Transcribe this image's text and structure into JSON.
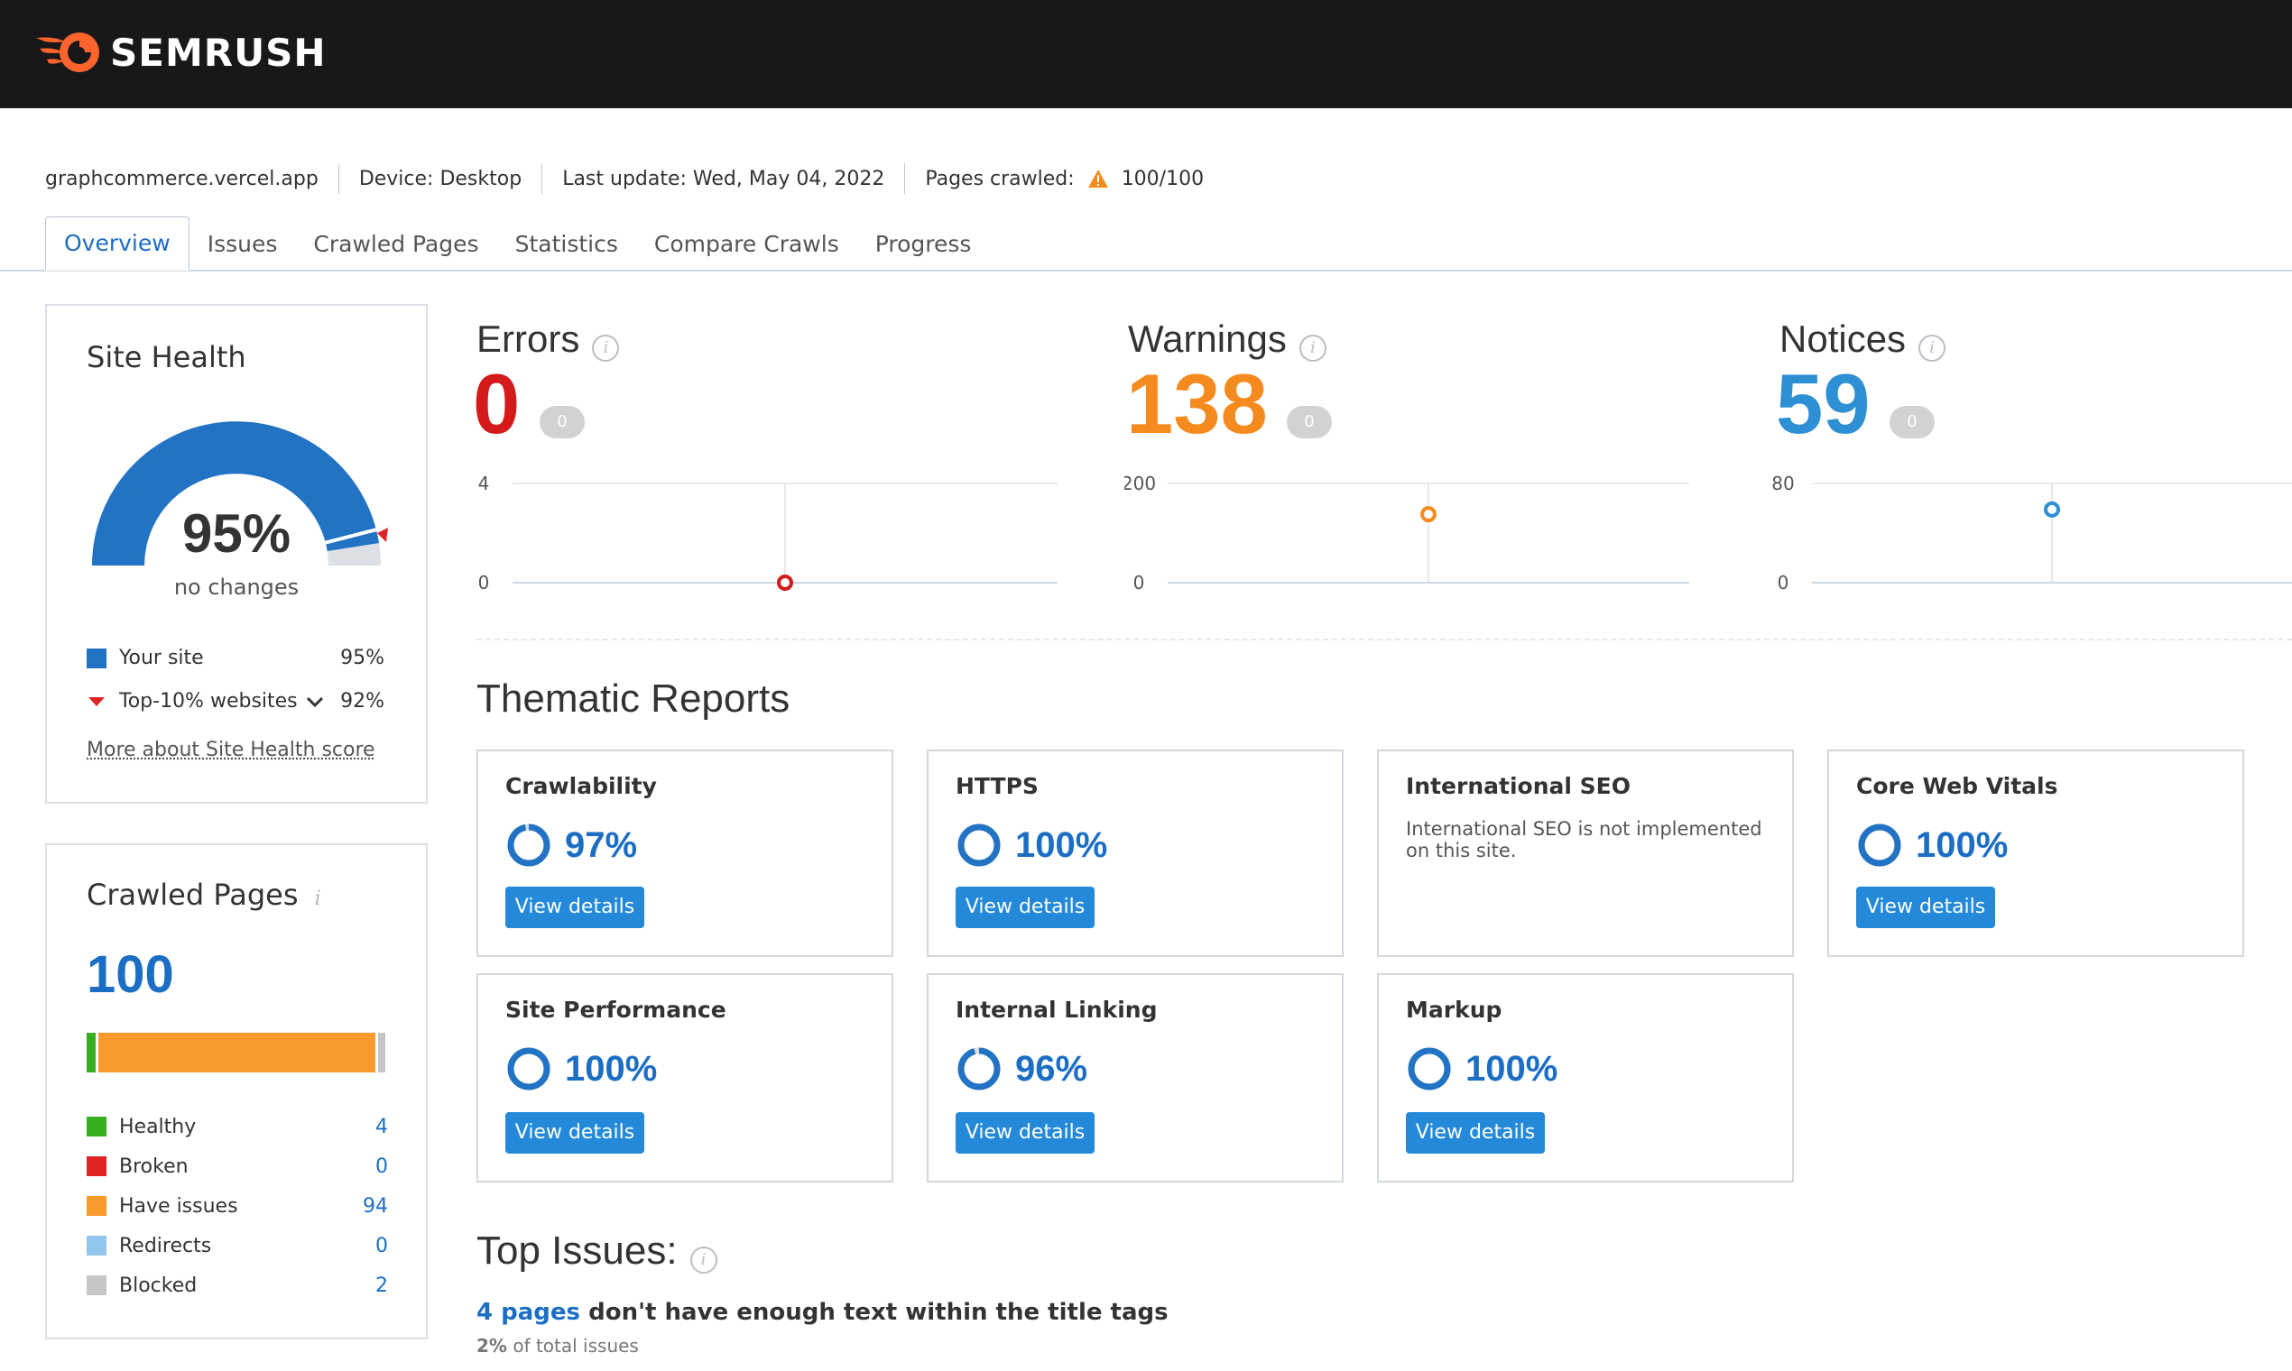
{
  "brand": {
    "name": "SEMRUSH",
    "accent": "#ff642d"
  },
  "meta": {
    "domain": "graphcommerce.vercel.app",
    "device": "Device: Desktop",
    "last_update": "Last update: Wed, May 04, 2022",
    "pages_crawled_label": "Pages crawled:",
    "pages_crawled_value": "100/100"
  },
  "tabs": [
    {
      "label": "Overview",
      "active": true
    },
    {
      "label": "Issues"
    },
    {
      "label": "Crawled Pages"
    },
    {
      "label": "Statistics"
    },
    {
      "label": "Compare Crawls"
    },
    {
      "label": "Progress"
    }
  ],
  "site_health": {
    "title": "Site Health",
    "score": "95%",
    "score_value": 95,
    "change": "no changes",
    "legend": [
      {
        "label": "Your site",
        "value": "95%",
        "color": "#2273c4"
      },
      {
        "label": "Top-10% websites",
        "value": "92%",
        "color": "#e02424"
      }
    ],
    "more_link": "More about Site Health score"
  },
  "crawled_pages": {
    "title": "Crawled Pages",
    "total": "100",
    "legend": [
      {
        "label": "Healthy",
        "value": "4",
        "color": "#37b01f",
        "count": 4
      },
      {
        "label": "Broken",
        "value": "0",
        "color": "#e02424",
        "count": 0
      },
      {
        "label": "Have issues",
        "value": "94",
        "color": "#f89a2c",
        "count": 94
      },
      {
        "label": "Redirects",
        "value": "0",
        "color": "#92c6ec",
        "count": 0
      },
      {
        "label": "Blocked",
        "value": "2",
        "color": "#c6c6c6",
        "count": 2
      }
    ]
  },
  "stats": {
    "errors": {
      "title": "Errors",
      "value": "0",
      "delta": "0",
      "color": "#d41a1a",
      "y_max": "4",
      "y_min": "0",
      "point": 0,
      "max": 4
    },
    "warnings": {
      "title": "Warnings",
      "value": "138",
      "delta": "0",
      "color": "#f58a1f",
      "y_max": "200",
      "y_min": "0",
      "point": 138,
      "max": 200
    },
    "notices": {
      "title": "Notices",
      "value": "59",
      "delta": "0",
      "color": "#2d8fd4",
      "y_max": "80",
      "y_min": "0",
      "point": 59,
      "max": 80
    }
  },
  "thematic": {
    "title": "Thematic Reports",
    "button_label": "View details",
    "cards": [
      {
        "title": "Crawlability",
        "pct": "97%",
        "value": 97
      },
      {
        "title": "HTTPS",
        "pct": "100%",
        "value": 100
      },
      {
        "title": "International SEO",
        "note": "International SEO is not implemented on this site."
      },
      {
        "title": "Core Web Vitals",
        "pct": "100%",
        "value": 100
      },
      {
        "title": "Site Performance",
        "pct": "100%",
        "value": 100
      },
      {
        "title": "Internal Linking",
        "pct": "96%",
        "value": 96
      },
      {
        "title": "Markup",
        "pct": "100%",
        "value": 100
      }
    ]
  },
  "top_issues": {
    "title": "Top Issues:",
    "items": [
      {
        "link": "4 pages",
        "text": "don't have enough text within the title tags",
        "share": "2%",
        "share_suffix": "of total issues"
      }
    ]
  }
}
